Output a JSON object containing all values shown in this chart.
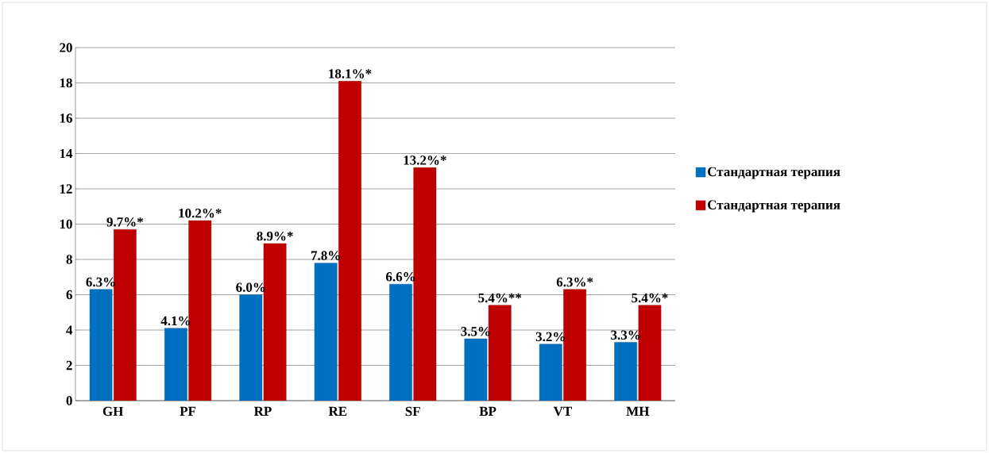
{
  "chart_data": {
    "type": "bar",
    "categories": [
      "GH",
      "PF",
      "RP",
      "RE",
      "SF",
      "BP",
      "VT",
      "MH"
    ],
    "series": [
      {
        "name": "Стандартная терапия",
        "color": "#0070c0",
        "values": [
          6.3,
          4.1,
          6.0,
          7.8,
          6.6,
          3.5,
          3.2,
          3.3
        ],
        "value_labels": [
          "6.3%",
          "4.1%",
          "6.0%",
          "7.8%",
          "6.6%",
          "3.5%",
          "3.2%",
          "3.3%"
        ]
      },
      {
        "name": "Стандартная терапия",
        "color": "#c00000",
        "values": [
          9.7,
          10.2,
          8.9,
          18.1,
          13.2,
          5.4,
          6.3,
          5.4
        ],
        "value_labels": [
          "9.7%*",
          "10.2%*",
          "8.9%*",
          "18.1%*",
          "13.2%*",
          "5.4%**",
          "6.3%*",
          "5.4%*"
        ]
      }
    ],
    "ylim": [
      0,
      20
    ],
    "yticks": [
      0,
      2,
      4,
      6,
      8,
      10,
      12,
      14,
      16,
      18,
      20
    ],
    "grid": "y",
    "legend": "right"
  }
}
